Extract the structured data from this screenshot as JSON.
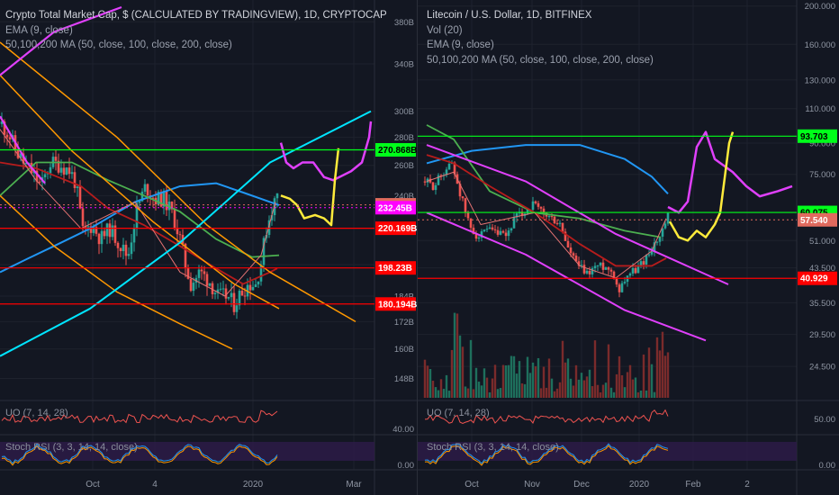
{
  "left": {
    "title": "Crypto Total Market Cap, $ (CALCULATED BY TRADINGVIEW), 1D, CRYPTOCAP",
    "ema_label": "EMA (9, close)",
    "ma_label": "50,100,200 MA (50, close, 100, close, 200, close)",
    "uo_label": "UO (7, 14, 28)",
    "stoch_label": "Stoch RSI (3, 3, 14, 14, close)",
    "x_labels": [
      "Oct",
      "4",
      "2020",
      "Mar"
    ],
    "chart_data": {
      "type": "candlestick",
      "title": "Crypto Total Market Cap, $ (CALCULATED BY TRADINGVIEW), 1D, CRYPTOCAP",
      "y_axis": {
        "scale": "log",
        "ticks": [
          "380B",
          "340B",
          "300B",
          "280B",
          "260B",
          "240B",
          "220B",
          "200B",
          "184B",
          "172B",
          "160B",
          "148B"
        ],
        "tick_values": [
          380,
          340,
          300,
          280,
          260,
          240,
          220,
          200,
          184,
          172,
          160,
          148
        ],
        "range": [
          144,
          395
        ]
      },
      "x_ticks": [
        "Oct",
        "4",
        "2020",
        "Mar"
      ],
      "close_path": [
        [
          0,
          290
        ],
        [
          8,
          282
        ],
        [
          16,
          270
        ],
        [
          24,
          262
        ],
        [
          34,
          255
        ],
        [
          44,
          246
        ],
        [
          54,
          262
        ],
        [
          66,
          260
        ],
        [
          76,
          256
        ],
        [
          82,
          248
        ],
        [
          90,
          218
        ],
        [
          100,
          222
        ],
        [
          110,
          214
        ],
        [
          120,
          220
        ],
        [
          130,
          212
        ],
        [
          140,
          204
        ],
        [
          150,
          232
        ],
        [
          160,
          246
        ],
        [
          170,
          238
        ],
        [
          180,
          238
        ],
        [
          190,
          228
        ],
        [
          198,
          214
        ],
        [
          204,
          200
        ],
        [
          210,
          190
        ],
        [
          220,
          196
        ],
        [
          230,
          192
        ],
        [
          240,
          184
        ],
        [
          250,
          184
        ],
        [
          258,
          180
        ],
        [
          266,
          186
        ],
        [
          274,
          190
        ],
        [
          282,
          190
        ],
        [
          288,
          201
        ],
        [
          294,
          220
        ],
        [
          300,
          232
        ],
        [
          306,
          240
        ]
      ],
      "price_labels": [
        {
          "text": "270.868B",
          "value": 270.868,
          "color": "#00ff1a"
        },
        {
          "text": "234.24B",
          "value": 234.24,
          "color": "#e06a5e"
        },
        {
          "text": "232.45B",
          "value": 232.45,
          "color": "#ff00ff"
        },
        {
          "text": "220.169B",
          "value": 220.169,
          "color": "#ff0000"
        },
        {
          "text": "198.23B",
          "value": 198.23,
          "color": "#ff0000"
        },
        {
          "text": "180.194B",
          "value": 180.194,
          "color": "#ff0000"
        }
      ],
      "oscillators": [
        {
          "name": "UO (7, 14, 28)",
          "ticks": [
            40.0
          ]
        },
        {
          "name": "Stoch RSI (3, 3, 14, 14, close)",
          "ticks": [
            0.0
          ]
        }
      ]
    }
  },
  "right": {
    "title": "Litecoin / U.S. Dollar, 1D, BITFINEX",
    "vol_label": "Vol (20)",
    "ema_label": "EMA (9, close)",
    "ma_label": "50,100,200 MA (50, close, 100, close, 200, close)",
    "uo_label": "UO (7, 14, 28)",
    "stoch_label": "Stoch RSI (3, 3, 14, 14, close)",
    "x_labels": [
      "Oct",
      "Nov",
      "Dec",
      "2020",
      "Feb",
      "2"
    ],
    "chart_data": {
      "type": "candlestick",
      "title": "Litecoin / U.S. Dollar, 1D, BITFINEX",
      "y_axis": {
        "scale": "log",
        "ticks": [
          "200.000",
          "160.000",
          "130.000",
          "110.000",
          "90.000",
          "75.000",
          "51.000",
          "43.500",
          "35.500",
          "29.500",
          "24.500"
        ],
        "tick_values": [
          200,
          160,
          130,
          110,
          90,
          75,
          51,
          43.5,
          35.5,
          29.5,
          24.5
        ],
        "range": [
          21.5,
          205
        ]
      },
      "x_ticks": [
        "Oct",
        "Nov",
        "Dec",
        "2020",
        "Feb",
        "2"
      ],
      "close_path": [
        [
          0,
          72
        ],
        [
          10,
          70
        ],
        [
          20,
          76
        ],
        [
          30,
          80
        ],
        [
          40,
          66
        ],
        [
          50,
          55
        ],
        [
          60,
          52
        ],
        [
          70,
          54
        ],
        [
          80,
          53
        ],
        [
          90,
          52
        ],
        [
          100,
          58
        ],
        [
          110,
          60
        ],
        [
          120,
          63
        ],
        [
          130,
          60
        ],
        [
          140,
          58
        ],
        [
          150,
          56
        ],
        [
          160,
          48
        ],
        [
          170,
          44
        ],
        [
          180,
          42
        ],
        [
          190,
          44
        ],
        [
          200,
          44
        ],
        [
          210,
          42
        ],
        [
          215,
          38
        ],
        [
          225,
          42
        ],
        [
          235,
          43
        ],
        [
          245,
          46
        ],
        [
          255,
          50
        ],
        [
          262,
          52
        ],
        [
          268,
          57
        ],
        [
          272,
          60
        ]
      ],
      "price_labels": [
        {
          "text": "93.703",
          "value": 93.703,
          "color": "#00ff1a"
        },
        {
          "text": "60.075",
          "value": 60.075,
          "color": "#00ff1a"
        },
        {
          "text": "57.540",
          "value": 57.54,
          "color": "#e06a5e"
        },
        {
          "text": "40.929",
          "value": 40.929,
          "color": "#ff0000"
        }
      ],
      "oscillators": [
        {
          "name": "UO (7, 14, 28)",
          "ticks": [
            50.0
          ]
        },
        {
          "name": "Stoch RSI (3, 3, 14, 14, close)",
          "ticks": [
            0.0
          ]
        }
      ]
    }
  }
}
